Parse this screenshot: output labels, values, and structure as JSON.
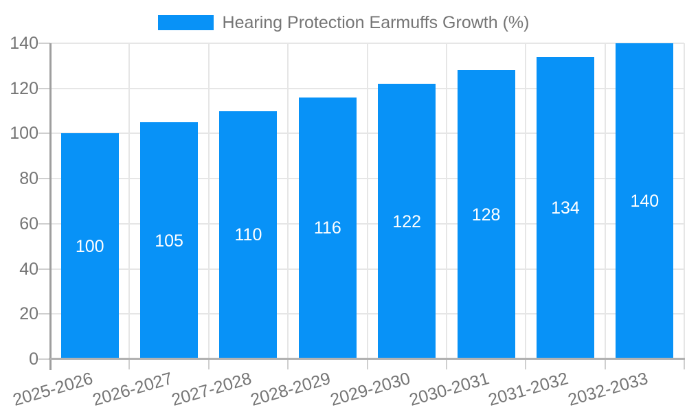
{
  "chart_data": {
    "type": "bar",
    "legend": "Hearing Protection Earmuffs Growth (%)",
    "legend_position": "top-center",
    "categories": [
      "2025-2026",
      "2026-2027",
      "2027-2028",
      "2028-2029",
      "2029-2030",
      "2030-2031",
      "2031-2032",
      "2032-2033"
    ],
    "values": [
      100,
      105,
      110,
      116,
      122,
      128,
      134,
      140
    ],
    "xlabel": "",
    "ylabel": "",
    "ylim": [
      0,
      140
    ],
    "ytick_step": 20,
    "yticks": [
      0,
      20,
      40,
      60,
      80,
      100,
      120,
      140
    ],
    "grid": true,
    "x_label_rotation_deg": -16,
    "colors": {
      "bar": "#0892f7",
      "value_label": "#ffffff",
      "axis_text": "#757575",
      "legend_text": "#757575",
      "gridline": "#e6e6e6",
      "tick": "#cfcfcf",
      "y_spine": "#9e9e9e",
      "x_axis_line": "#b1b1b1",
      "background": "#ffffff"
    }
  }
}
